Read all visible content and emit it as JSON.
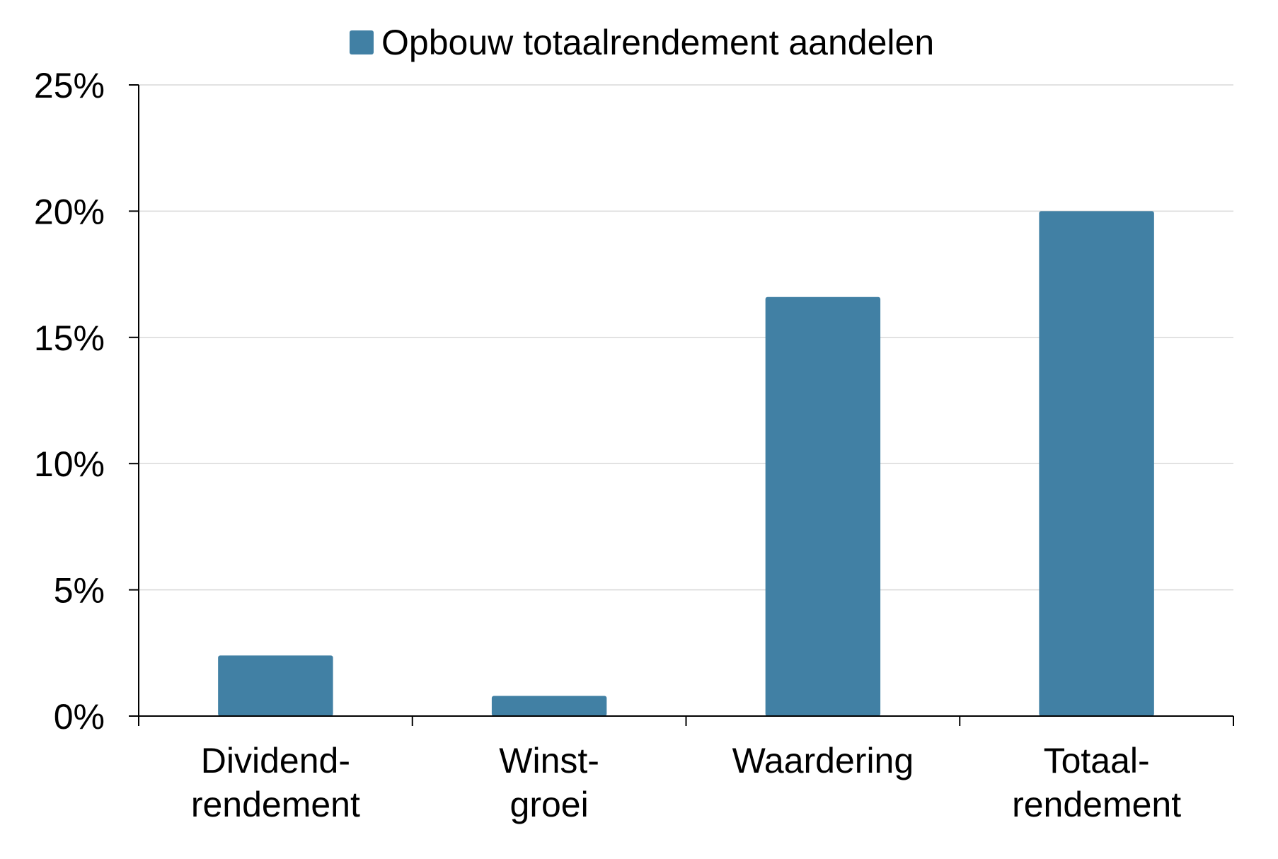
{
  "chart_data": {
    "type": "bar",
    "title": "",
    "xlabel": "",
    "ylabel": "",
    "categories": [
      [
        "Dividend-",
        "rendement"
      ],
      [
        "Winst-",
        "groei"
      ],
      [
        "Waardering"
      ],
      [
        "Totaal-",
        "rendement"
      ]
    ],
    "series": [
      {
        "name": "Opbouw totaalrendement aandelen",
        "values": [
          2.4,
          0.8,
          16.6,
          20.0
        ]
      }
    ],
    "ylim": [
      0,
      25
    ],
    "yticks": [
      0,
      5,
      10,
      15,
      20,
      25
    ],
    "ytick_labels": [
      "0%",
      "5%",
      "10%",
      "15%",
      "20%",
      "25%"
    ],
    "grid": true,
    "legend_position": "top-center",
    "colors": {
      "bar": "#4180a4",
      "grid": "#d9d9d9",
      "axis": "#000000"
    }
  }
}
